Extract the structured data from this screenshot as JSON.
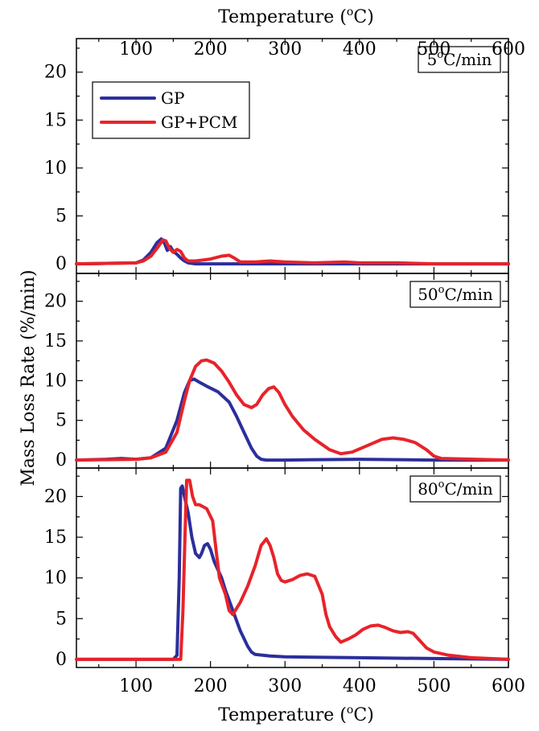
{
  "chart_data": {
    "type": "line",
    "xlabel_top": "Temperature (",
    "xlabel_bottom": "Temperature (",
    "xlabel_unit_sup": "o",
    "xlabel_unit_tail": "C)",
    "ylabel": "Mass Loss Rate (%/min)",
    "xlim": [
      20,
      600
    ],
    "x_ticks": [
      100,
      200,
      300,
      400,
      500,
      600
    ],
    "legend": {
      "placement": "top-left",
      "entries": [
        {
          "name": "GP",
          "color": "#2b2f9c"
        },
        {
          "name": "GP+PCM",
          "color": "#e8232a"
        }
      ]
    },
    "panels": [
      {
        "rate_label_pre": "5",
        "rate_label_sup": "o",
        "rate_label_post": "C/min",
        "ylim": [
          -1,
          23.5
        ],
        "y_ticks": [
          0,
          5,
          10,
          15,
          20
        ],
        "series": [
          {
            "name": "GP",
            "color": "#2b2f9c",
            "x": [
              20,
              60,
              100,
              110,
              120,
              128,
              134,
              138,
              142,
              146,
              150,
              155,
              160,
              165,
              170,
              180,
              200,
              250,
              300,
              400,
              500,
              600
            ],
            "y": [
              0,
              0.05,
              0.1,
              0.4,
              1.2,
              2.2,
              2.6,
              2.2,
              1.4,
              1.8,
              1.3,
              1.0,
              0.6,
              0.3,
              0.1,
              0,
              0,
              0,
              0,
              0,
              0,
              0
            ]
          },
          {
            "name": "GP+PCM",
            "color": "#e8232a",
            "x": [
              20,
              60,
              100,
              110,
              120,
              130,
              136,
              140,
              145,
              150,
              155,
              160,
              165,
              170,
              180,
              200,
              215,
              225,
              232,
              240,
              260,
              280,
              300,
              340,
              380,
              400,
              450,
              500,
              600
            ],
            "y": [
              0,
              0.05,
              0.1,
              0.3,
              0.8,
              1.8,
              2.5,
              2.4,
              1.6,
              1.2,
              1.5,
              1.3,
              0.6,
              0.3,
              0.3,
              0.5,
              0.8,
              0.9,
              0.6,
              0.2,
              0.2,
              0.3,
              0.2,
              0.1,
              0.2,
              0.1,
              0.1,
              0,
              0
            ]
          }
        ]
      },
      {
        "rate_label_pre": "50",
        "rate_label_sup": "o",
        "rate_label_post": "C/min",
        "ylim": [
          -1,
          23.5
        ],
        "y_ticks": [
          0,
          5,
          10,
          15,
          20
        ],
        "series": [
          {
            "name": "GP",
            "color": "#2b2f9c",
            "x": [
              20,
              60,
              80,
              100,
              120,
              140,
              155,
              165,
              172,
              178,
              185,
              195,
              210,
              225,
              235,
              245,
              255,
              262,
              268,
              275,
              300,
              400,
              500,
              600
            ],
            "y": [
              0,
              0.1,
              0.2,
              0.1,
              0.3,
              1.5,
              5.0,
              8.5,
              10.0,
              10.2,
              9.8,
              9.3,
              8.6,
              7.3,
              5.5,
              3.5,
              1.5,
              0.5,
              0.1,
              0,
              0,
              0.1,
              0,
              0
            ]
          },
          {
            "name": "GP+PCM",
            "color": "#e8232a",
            "x": [
              20,
              60,
              100,
              120,
              140,
              155,
              165,
              172,
              180,
              188,
              195,
              205,
              215,
              225,
              235,
              245,
              255,
              262,
              270,
              278,
              285,
              292,
              300,
              310,
              325,
              340,
              360,
              375,
              390,
              410,
              430,
              445,
              460,
              475,
              490,
              500,
              510,
              600
            ],
            "y": [
              0,
              0.05,
              0.1,
              0.3,
              1.0,
              3.5,
              7.5,
              10.0,
              11.8,
              12.5,
              12.6,
              12.2,
              11.2,
              9.8,
              8.2,
              7.0,
              6.6,
              7.0,
              8.2,
              9.0,
              9.2,
              8.5,
              7.0,
              5.5,
              3.8,
              2.6,
              1.3,
              0.8,
              1.0,
              1.8,
              2.6,
              2.8,
              2.6,
              2.2,
              1.3,
              0.5,
              0.2,
              0
            ]
          }
        ]
      },
      {
        "rate_label_pre": "80",
        "rate_label_sup": "o",
        "rate_label_post": "C/min",
        "ylim": [
          -1,
          23.5
        ],
        "y_ticks": [
          0,
          5,
          10,
          15,
          20
        ],
        "series": [
          {
            "name": "GP",
            "color": "#2b2f9c",
            "x": [
              20,
              100,
              150,
              155,
              158,
              160,
              162,
              165,
              170,
              175,
              180,
              185,
              188,
              192,
              196,
              200,
              205,
              210,
              215,
              220,
              230,
              240,
              250,
              255,
              260,
              280,
              300,
              400,
              500,
              600
            ],
            "y": [
              0,
              0,
              0,
              0.5,
              10.0,
              21.0,
              21.3,
              20.0,
              18.0,
              15.0,
              13.0,
              12.5,
              13.0,
              14.0,
              14.2,
              13.5,
              12.0,
              11.0,
              10.0,
              8.5,
              6.0,
              3.5,
              1.6,
              0.9,
              0.6,
              0.4,
              0.3,
              0.2,
              0.1,
              0
            ]
          },
          {
            "name": "GP+PCM",
            "color": "#e8232a",
            "x": [
              20,
              100,
              160,
              163,
              166,
              168,
              172,
              176,
              180,
              185,
              195,
              203,
              208,
              212,
              220,
              225,
              230,
              240,
              250,
              260,
              268,
              275,
              280,
              285,
              290,
              295,
              300,
              310,
              320,
              330,
              340,
              350,
              355,
              360,
              368,
              375,
              385,
              395,
              405,
              415,
              425,
              435,
              445,
              455,
              465,
              472,
              480,
              490,
              500,
              520,
              550,
              600
            ],
            "y": [
              0,
              0,
              0,
              6.0,
              16.0,
              22.0,
              22.0,
              20.0,
              19.0,
              19.0,
              18.5,
              17.0,
              13.0,
              10.0,
              8.0,
              6.0,
              5.5,
              7.0,
              9.0,
              11.5,
              14.0,
              14.8,
              14.0,
              12.5,
              10.5,
              9.7,
              9.5,
              9.8,
              10.3,
              10.5,
              10.2,
              8.0,
              5.5,
              4.0,
              2.8,
              2.1,
              2.5,
              3.0,
              3.7,
              4.1,
              4.2,
              3.9,
              3.5,
              3.3,
              3.4,
              3.2,
              2.4,
              1.4,
              0.9,
              0.5,
              0.2,
              0
            ]
          }
        ]
      }
    ]
  }
}
